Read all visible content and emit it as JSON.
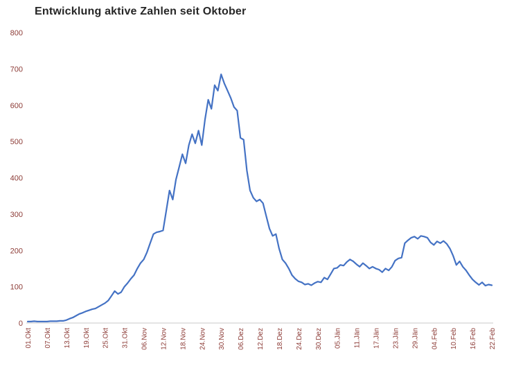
{
  "chart": {
    "title": "Entwicklung aktive Zahlen seit Oktober"
  },
  "chart_data": {
    "type": "line",
    "title": "Entwicklung aktive Zahlen seit Oktober",
    "xlabel": "",
    "ylabel": "",
    "ylim": [
      0,
      800
    ],
    "yticks": [
      0,
      100,
      200,
      300,
      400,
      500,
      600,
      700,
      800
    ],
    "grid": false,
    "legend": "none",
    "series_color": "#4472C4",
    "axis_label_color": "#8C3B36",
    "title_color": "#262626",
    "points_per_tick": 6,
    "x_tick_labels": [
      "01.Okt",
      "07.Okt",
      "13.Okt",
      "19.Okt",
      "25.Okt",
      "31.Okt",
      "06.Nov",
      "12.Nov",
      "18.Nov",
      "24.Nov",
      "30.Nov",
      "06.Dez",
      "12.Dez",
      "18.Dez",
      "24.Dez",
      "30.Dez",
      "05.Jän",
      "11.Jän",
      "17.Jän",
      "23.Jän",
      "29.Jän",
      "04.Feb",
      "10.Feb",
      "16.Feb",
      "22.Feb"
    ],
    "values": [
      4,
      4,
      5,
      4,
      4,
      4,
      4,
      5,
      5,
      5,
      6,
      6,
      8,
      12,
      15,
      20,
      25,
      28,
      32,
      35,
      38,
      40,
      45,
      50,
      55,
      62,
      75,
      88,
      80,
      85,
      100,
      110,
      122,
      132,
      150,
      165,
      175,
      195,
      220,
      245,
      250,
      252,
      255,
      310,
      365,
      340,
      395,
      430,
      465,
      440,
      490,
      520,
      495,
      530,
      490,
      560,
      615,
      590,
      655,
      640,
      685,
      660,
      640,
      620,
      595,
      585,
      510,
      505,
      420,
      365,
      345,
      335,
      340,
      330,
      295,
      260,
      240,
      245,
      205,
      175,
      165,
      150,
      132,
      122,
      115,
      112,
      106,
      108,
      104,
      110,
      114,
      112,
      125,
      120,
      135,
      150,
      152,
      160,
      158,
      168,
      175,
      170,
      162,
      155,
      165,
      158,
      150,
      155,
      150,
      147,
      140,
      150,
      145,
      155,
      172,
      178,
      180,
      220,
      228,
      235,
      238,
      232,
      240,
      238,
      235,
      222,
      215,
      225,
      220,
      226,
      218,
      205,
      185,
      160,
      170,
      155,
      145,
      132,
      120,
      112,
      105,
      112,
      103,
      106,
      104
    ]
  }
}
